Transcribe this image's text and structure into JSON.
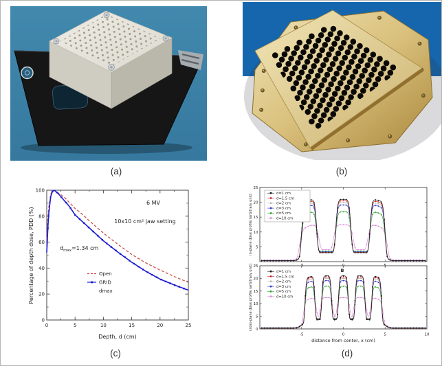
{
  "panels": {
    "a": {
      "caption": "(a)",
      "description": "white acrylic GRID block with matrix of holes mounted on black tray"
    },
    "b": {
      "caption": "(b)",
      "description": "brass octagonal GRID collimator with hexagonal hole pattern"
    },
    "c": {
      "caption": "(c)"
    },
    "d": {
      "caption": "(d)"
    }
  },
  "chart_data": [
    {
      "type": "line",
      "panel": "c",
      "xlabel": "Depth, d (cm)",
      "ylabel": "Percentage of depth dose, PDD (%)",
      "xlim": [
        0,
        25
      ],
      "ylim": [
        0,
        100
      ],
      "xticks": [
        0,
        5,
        10,
        15,
        20,
        25
      ],
      "yticks": [
        0,
        20,
        40,
        60,
        80,
        100
      ],
      "annotations": {
        "beam": "6 MV",
        "jaw": "10x10 cm² jaw setting",
        "dmax_base": "d",
        "dmax_sub": "max",
        "dmax_rest": "=1.34 cm"
      },
      "legend": [
        "Open",
        "GRID",
        "dmax"
      ],
      "x": [
        0,
        0.3,
        0.7,
        1,
        1.34,
        2,
        3,
        4,
        5,
        6,
        7.5,
        10,
        12.5,
        15,
        17.5,
        20,
        22.5,
        25
      ],
      "series": [
        {
          "name": "Open",
          "color": "#cc5050",
          "style": "dashed",
          "values": [
            62,
            85,
            97,
            99.5,
            100,
            98,
            95,
            90.5,
            86,
            82.5,
            76.5,
            67,
            58.5,
            50.5,
            44,
            38.5,
            33.5,
            29
          ]
        },
        {
          "name": "GRID",
          "color": "#1b1bd0",
          "style": "solid-marker",
          "values": [
            52,
            80,
            95,
            99,
            100,
            97.5,
            92.5,
            87.5,
            81,
            77,
            71,
            61,
            52.5,
            44.5,
            37.5,
            31.5,
            27,
            23
          ]
        }
      ]
    },
    {
      "type": "line",
      "panel": "d-top",
      "ylabel": "in-plane dose profile (arbitrary unit)",
      "xlim": [
        -10,
        10
      ],
      "ylim": [
        0,
        25
      ],
      "xticks": [
        -5,
        0,
        5
      ],
      "yticks": [
        5,
        10,
        15,
        20,
        25
      ],
      "peak_centers": [
        -4.1,
        0,
        4.1
      ],
      "peak_halfwidth": 0.95,
      "region_halfwidth": 5.1,
      "legend_position": "upper-left",
      "series": [
        {
          "name": "d=1 cm",
          "color": "#1a1a1a",
          "peak": 21.0,
          "valley": 3.0,
          "baseline": 0.3
        },
        {
          "name": "d=1.5 cm",
          "color": "#cc2222",
          "peak": 20.5,
          "valley": 3.1,
          "baseline": 0.3
        },
        {
          "name": "d=2 cm",
          "color": "#b3b3b3",
          "peak": 19.9,
          "valley": 3.2,
          "baseline": 0.3
        },
        {
          "name": "d=3 cm",
          "color": "#2b35c8",
          "peak": 19.1,
          "valley": 3.3,
          "baseline": 0.35
        },
        {
          "name": "d=5 cm",
          "color": "#27a427",
          "peak": 16.8,
          "valley": 3.5,
          "baseline": 0.4
        },
        {
          "name": "d=10 cm",
          "color": "#d98ad9",
          "peak": 12.4,
          "valley": 4.0,
          "baseline": 0.5,
          "halfwidth_scale": 1.28
        }
      ]
    },
    {
      "type": "line",
      "panel": "d-bottom",
      "xlabel": "distance from center, x (cm)",
      "ylabel": "cross-plane dose profile (arbitrary unit)",
      "xlim": [
        -10,
        10
      ],
      "ylim": [
        0,
        25
      ],
      "xticks": [
        -5,
        0,
        5,
        10
      ],
      "yticks": [
        0,
        5,
        10,
        15,
        20,
        25
      ],
      "peak_centers": [
        -4,
        -2,
        0,
        2,
        4
      ],
      "peak_halfwidth": 0.62,
      "region_halfwidth": 4.95,
      "annotation": "B",
      "legend_position": "upper-left",
      "series": [
        {
          "name": "d=1 cm",
          "color": "#1a1a1a",
          "peak": 21.0,
          "valley": 3.6,
          "baseline": 0.3
        },
        {
          "name": "d=1.5 cm",
          "color": "#cc2222",
          "peak": 20.6,
          "valley": 3.7,
          "baseline": 0.3
        },
        {
          "name": "d=2 cm",
          "color": "#b3b3b3",
          "peak": 20.0,
          "valley": 3.8,
          "baseline": 0.3
        },
        {
          "name": "d=3 cm",
          "color": "#2b35c8",
          "peak": 19.1,
          "valley": 3.9,
          "baseline": 0.35
        },
        {
          "name": "d=5 cm",
          "color": "#27a427",
          "peak": 16.9,
          "valley": 4.1,
          "baseline": 0.4
        },
        {
          "name": "d=10 cm",
          "color": "#d98ad9",
          "peak": 12.4,
          "valley": 4.3,
          "baseline": 0.5,
          "halfwidth_scale": 1.3
        }
      ]
    }
  ]
}
